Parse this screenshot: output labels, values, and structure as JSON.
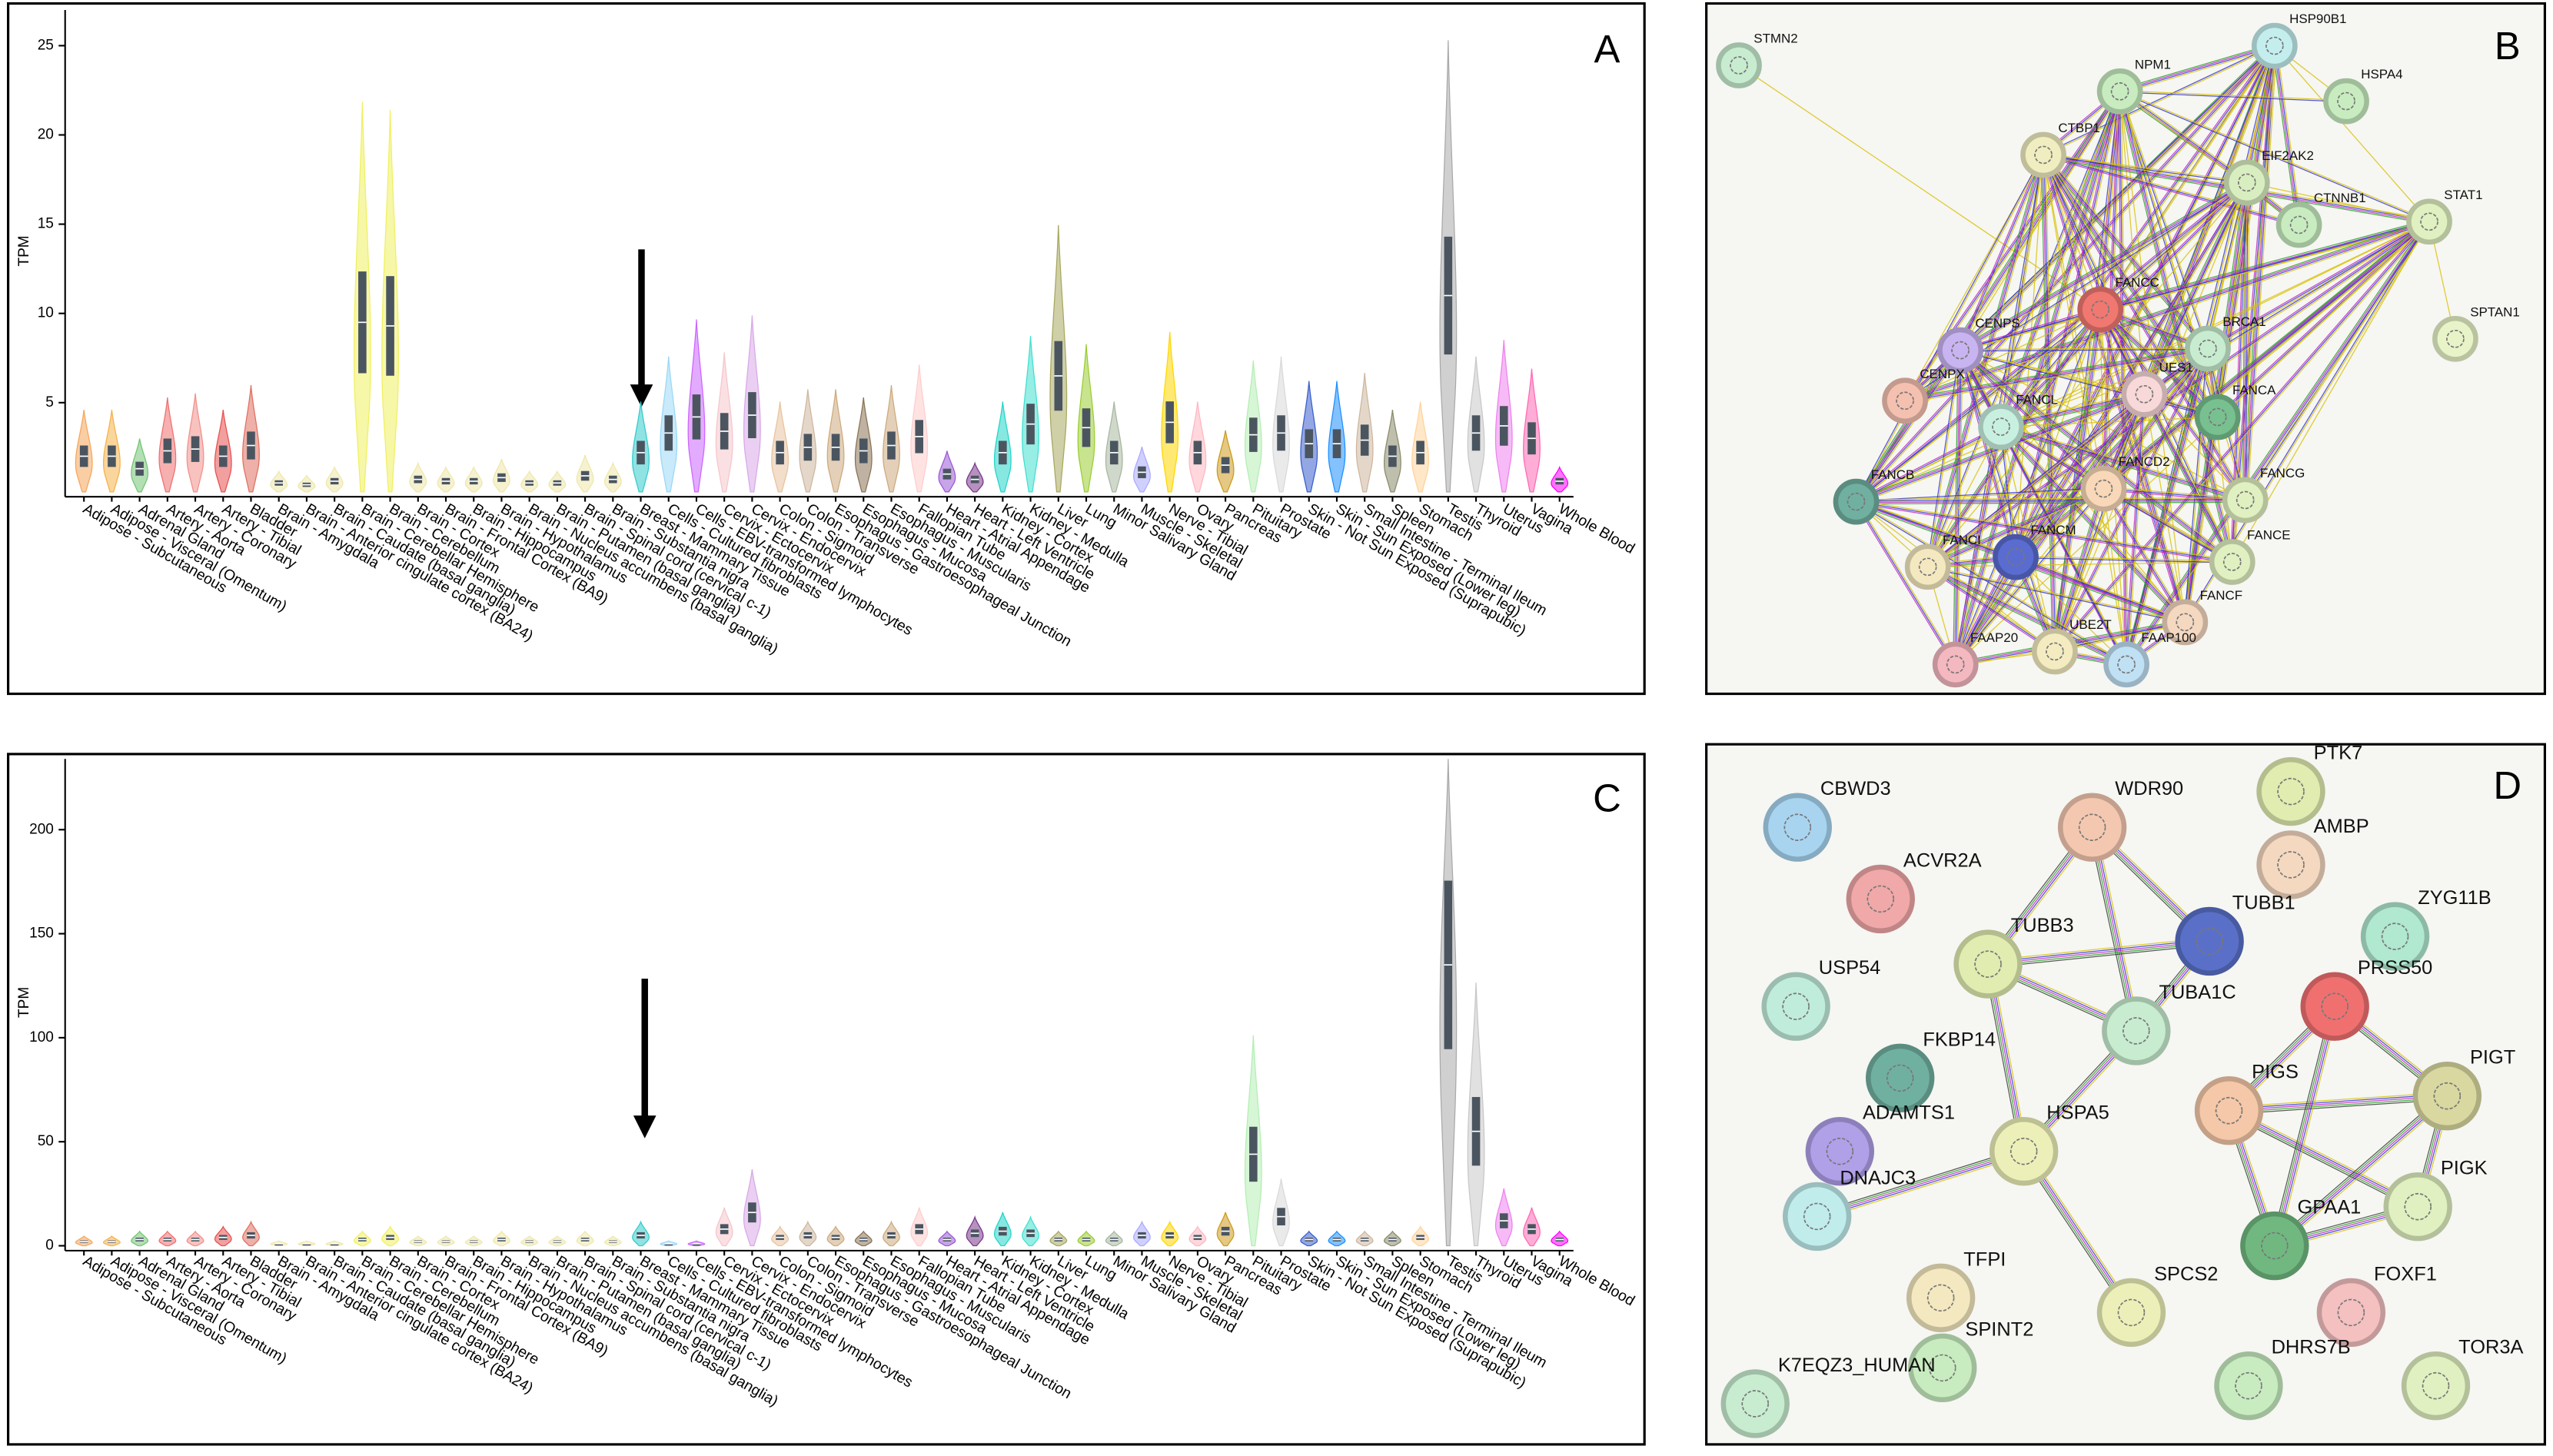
{
  "chart_data": [
    {
      "type": "violin",
      "panel_label": "A",
      "y_label": "TPM",
      "ylim": [
        0,
        27
      ],
      "yticks": [
        5,
        10,
        15,
        20,
        25
      ],
      "categories": [
        "Adipose - Subcutaneous",
        "Adipose - Visceral (Omentum)",
        "Adrenal Gland",
        "Artery - Aorta",
        "Artery - Coronary",
        "Artery - Tibial",
        "Bladder",
        "Brain - Amygdala",
        "Brain - Anterior cingulate cortex (BA24)",
        "Brain - Caudate (basal ganglia)",
        "Brain - Cerebellar Hemisphere",
        "Brain - Cerebellum",
        "Brain - Cortex",
        "Brain - Frontal Cortex (BA9)",
        "Brain - Hippocampus",
        "Brain - Hypothalamus",
        "Brain - Nucleus accumbens (basal ganglia)",
        "Brain - Putamen (basal ganglia)",
        "Brain - Spinal cord (cervical c-1)",
        "Brain - Substantia nigra",
        "Breast - Mammary Tissue",
        "Cells - Cultured fibroblasts",
        "Cells - EBV-transformed lymphocytes",
        "Cervix - Ectocervix",
        "Cervix - Endocervix",
        "Colon - Sigmoid",
        "Colon - Transverse",
        "Esophagus - Gastroesophageal Junction",
        "Esophagus - Mucosa",
        "Esophagus - Muscularis",
        "Fallopian Tube",
        "Heart - Atrial Appendage",
        "Heart - Left Ventricle",
        "Kidney - Cortex",
        "Kidney - Medulla",
        "Liver",
        "Lung",
        "Minor Salivary Gland",
        "Muscle - Skeletal",
        "Nerve - Tibial",
        "Ovary",
        "Pancreas",
        "Pituitary",
        "Prostate",
        "Skin - Not Sun Exposed (Suprapubic)",
        "Skin - Sun Exposed (Lower leg)",
        "Small Intestine - Terminal Ileum",
        "Spleen",
        "Stomach",
        "Testis",
        "Thyroid",
        "Uterus",
        "Vagina",
        "Whole Blood"
      ],
      "values": [
        2.0,
        2.0,
        1.3,
        2.3,
        2.4,
        2.0,
        2.6,
        0.5,
        0.4,
        0.6,
        9.5,
        9.3,
        0.7,
        0.6,
        0.6,
        0.8,
        0.5,
        0.5,
        0.9,
        0.7,
        2.2,
        3.3,
        4.2,
        3.4,
        4.3,
        2.2,
        2.5,
        2.5,
        2.3,
        2.6,
        3.1,
        1.0,
        0.7,
        2.2,
        3.8,
        6.5,
        3.6,
        2.2,
        1.1,
        3.9,
        2.2,
        1.5,
        3.2,
        3.3,
        2.7,
        2.7,
        2.9,
        2.0,
        2.2,
        11.0,
        3.3,
        3.7,
        3.0,
        0.6
      ],
      "colors": [
        "#f5a65b",
        "#f5b24a",
        "#74c476",
        "#f07070",
        "#f2908a",
        "#e85050",
        "#e07060",
        "#eee8aa",
        "#eee8aa",
        "#eee8aa",
        "#f0f060",
        "#f0f060",
        "#eee8aa",
        "#eee8aa",
        "#eee8aa",
        "#eee8aa",
        "#eee8aa",
        "#eee8aa",
        "#eee8aa",
        "#eee8aa",
        "#33cccc",
        "#9ad8f5",
        "#cc66ff",
        "#f5c6cc",
        "#d8a8e8",
        "#e8c39e",
        "#cdb79e",
        "#cdaa7d",
        "#8b7355",
        "#cdaa7d",
        "#ffcccc",
        "#9b59d6",
        "#7a378b",
        "#22d6c8",
        "#40e0d0",
        "#a8a860",
        "#9acd32",
        "#a8b8a0",
        "#aaaaff",
        "#ffd700",
        "#ffb6c1",
        "#cd9b1d",
        "#b4eeb4",
        "#d9d9d9",
        "#3a5fcd",
        "#1e90ff",
        "#cdb79e",
        "#8b8b6b",
        "#ffd39b",
        "#aaaaaa",
        "#c8c8c8",
        "#ee82ee",
        "#ff69b4",
        "#ff00ff"
      ]
    },
    {
      "type": "violin",
      "panel_label": "C",
      "y_label": "TPM",
      "ylim": [
        0,
        234
      ],
      "yticks": [
        0,
        50,
        100,
        150,
        200
      ],
      "categories": [
        "Adipose - Subcutaneous",
        "Adipose - Visceral (Omentum)",
        "Adrenal Gland",
        "Artery - Aorta",
        "Artery - Coronary",
        "Artery - Tibial",
        "Bladder",
        "Brain - Amygdala",
        "Brain - Anterior cingulate cortex (BA24)",
        "Brain - Caudate (basal ganglia)",
        "Brain - Cerebellar Hemisphere",
        "Brain - Cerebellum",
        "Brain - Cortex",
        "Brain - Frontal Cortex (BA9)",
        "Brain - Hippocampus",
        "Brain - Hypothalamus",
        "Brain - Nucleus accumbens (basal ganglia)",
        "Brain - Putamen (basal ganglia)",
        "Brain - Spinal cord (cervical c-1)",
        "Brain - Substantia nigra",
        "Breast - Mammary Tissue",
        "Cells - Cultured fibroblasts",
        "Cells - EBV-transformed lymphocytes",
        "Cervix - Ectocervix",
        "Cervix - Endocervix",
        "Colon - Sigmoid",
        "Colon - Transverse",
        "Esophagus - Gastroesophageal Junction",
        "Esophagus - Mucosa",
        "Esophagus - Muscularis",
        "Fallopian Tube",
        "Heart - Atrial Appendage",
        "Heart - Left Ventricle",
        "Kidney - Cortex",
        "Kidney - Medulla",
        "Liver",
        "Lung",
        "Minor Salivary Gland",
        "Muscle - Skeletal",
        "Nerve - Tibial",
        "Ovary",
        "Pancreas",
        "Pituitary",
        "Prostate",
        "Skin - Not Sun Exposed (Suprapubic)",
        "Skin - Sun Exposed (Lower leg)",
        "Small Intestine - Terminal Ileum",
        "Spleen",
        "Stomach",
        "Testis",
        "Thyroid",
        "Uterus",
        "Vagina",
        "Whole Blood"
      ],
      "values": [
        2,
        2,
        3,
        3,
        3,
        4,
        5,
        1,
        1,
        1,
        3,
        4,
        2,
        2,
        2,
        3,
        2,
        2,
        3,
        2,
        5,
        1,
        1,
        8,
        16,
        4,
        5,
        4,
        3,
        5,
        8,
        3,
        6,
        7,
        6,
        3,
        3,
        3,
        5,
        5,
        4,
        7,
        44,
        14,
        3,
        3,
        3,
        3,
        4,
        135,
        55,
        12,
        8,
        3
      ],
      "colors": [
        "#f5a65b",
        "#f5b24a",
        "#74c476",
        "#f07070",
        "#f2908a",
        "#e85050",
        "#e07060",
        "#eee8aa",
        "#eee8aa",
        "#eee8aa",
        "#f0f060",
        "#f0f060",
        "#eee8aa",
        "#eee8aa",
        "#eee8aa",
        "#eee8aa",
        "#eee8aa",
        "#eee8aa",
        "#eee8aa",
        "#eee8aa",
        "#33cccc",
        "#9ad8f5",
        "#cc66ff",
        "#f5c6cc",
        "#d8a8e8",
        "#e8c39e",
        "#cdb79e",
        "#cdaa7d",
        "#8b7355",
        "#cdaa7d",
        "#ffcccc",
        "#9b59d6",
        "#7a378b",
        "#22d6c8",
        "#40e0d0",
        "#a8a860",
        "#9acd32",
        "#a8b8a0",
        "#aaaaff",
        "#ffd700",
        "#ffb6c1",
        "#cd9b1d",
        "#b4eeb4",
        "#d9d9d9",
        "#3a5fcd",
        "#1e90ff",
        "#cdb79e",
        "#8b8b6b",
        "#ffd39b",
        "#aaaaaa",
        "#c8c8c8",
        "#ee82ee",
        "#ff69b4",
        "#ff00ff"
      ]
    }
  ],
  "networks": [
    {
      "panel_label": "B",
      "nodes": [
        {
          "label": "STMN2",
          "color": "#c8ecd0"
        },
        {
          "label": "HSP90B1",
          "color": "#c4eeee"
        },
        {
          "label": "NPM1",
          "color": "#c8ecc0"
        },
        {
          "label": "HSPA4",
          "color": "#c8ecc0"
        },
        {
          "label": "CTBP1",
          "color": "#f0eec0"
        },
        {
          "label": "EIF2AK2",
          "color": "#d8eec0"
        },
        {
          "label": "CTNNB1",
          "color": "#c8ecc0"
        },
        {
          "label": "STAT1",
          "color": "#e0f0c0"
        },
        {
          "label": "FANCC",
          "color": "#f07870"
        },
        {
          "label": "SPTAN1",
          "color": "#e8f4c8"
        },
        {
          "label": "CENPS",
          "color": "#c8b4f0"
        },
        {
          "label": "BRCA1",
          "color": "#c8ecd0"
        },
        {
          "label": "CENPX",
          "color": "#f4c0b0"
        },
        {
          "label": "FANCL",
          "color": "#c8f0e0"
        },
        {
          "label": "UES1",
          "color": "#f8d8d8"
        },
        {
          "label": "FANCA",
          "color": "#78c090"
        },
        {
          "label": "FANCD2",
          "color": "#f8d8b8"
        },
        {
          "label": "FANCB",
          "color": "#70b0a0"
        },
        {
          "label": "FANCG",
          "color": "#e0f0c0"
        },
        {
          "label": "FANCI",
          "color": "#f4e8c0"
        },
        {
          "label": "FANCM",
          "color": "#5a6cd0"
        },
        {
          "label": "FANCE",
          "color": "#e0f0c0"
        },
        {
          "label": "FANCF",
          "color": "#f4d8c0"
        },
        {
          "label": "UBE2T",
          "color": "#f4ecc0"
        },
        {
          "label": "FAAP100",
          "color": "#c0e0f4"
        },
        {
          "label": "FAAP20",
          "color": "#f4b8c0"
        }
      ]
    },
    {
      "panel_label": "D",
      "nodes": [
        {
          "label": "CBWD3",
          "color": "#a8d4f0"
        },
        {
          "label": "ACVR2A",
          "color": "#f0a8a8"
        },
        {
          "label": "WDR90",
          "color": "#f4c8b0"
        },
        {
          "label": "PTK7",
          "color": "#e0ecb0"
        },
        {
          "label": "AMBP",
          "color": "#f4d8c0"
        },
        {
          "label": "TUBB1",
          "color": "#5a70c8"
        },
        {
          "label": "ZYG11B",
          "color": "#b0e8d0"
        },
        {
          "label": "USP54",
          "color": "#c0ecdc"
        },
        {
          "label": "TUBB3",
          "color": "#e0ecb0"
        },
        {
          "label": "TUBA1C",
          "color": "#c8ecd0"
        },
        {
          "label": "PRSS50",
          "color": "#f07070"
        },
        {
          "label": "FKBP14",
          "color": "#70b0a0"
        },
        {
          "label": "PIGT",
          "color": "#d8d8a0"
        },
        {
          "label": "PIGS",
          "color": "#f4c8a8"
        },
        {
          "label": "ADAMTS1",
          "color": "#b0a0e8"
        },
        {
          "label": "HSPA5",
          "color": "#ecf0b8"
        },
        {
          "label": "DNAJC3",
          "color": "#c0ecec"
        },
        {
          "label": "PIGK",
          "color": "#e0f0c0"
        },
        {
          "label": "GPAA1",
          "color": "#70b880"
        },
        {
          "label": "TFPI",
          "color": "#f4e8c0"
        },
        {
          "label": "SPCS2",
          "color": "#ecf0b8"
        },
        {
          "label": "FOXF1",
          "color": "#f4c0c0"
        },
        {
          "label": "SPINT2",
          "color": "#c8ecc0"
        },
        {
          "label": "DHRS7B",
          "color": "#c8ecc0"
        },
        {
          "label": "TOR3A",
          "color": "#e0f0c0"
        },
        {
          "label": "K7EQZ3_HUMAN",
          "color": "#c8ecd0"
        }
      ]
    }
  ]
}
